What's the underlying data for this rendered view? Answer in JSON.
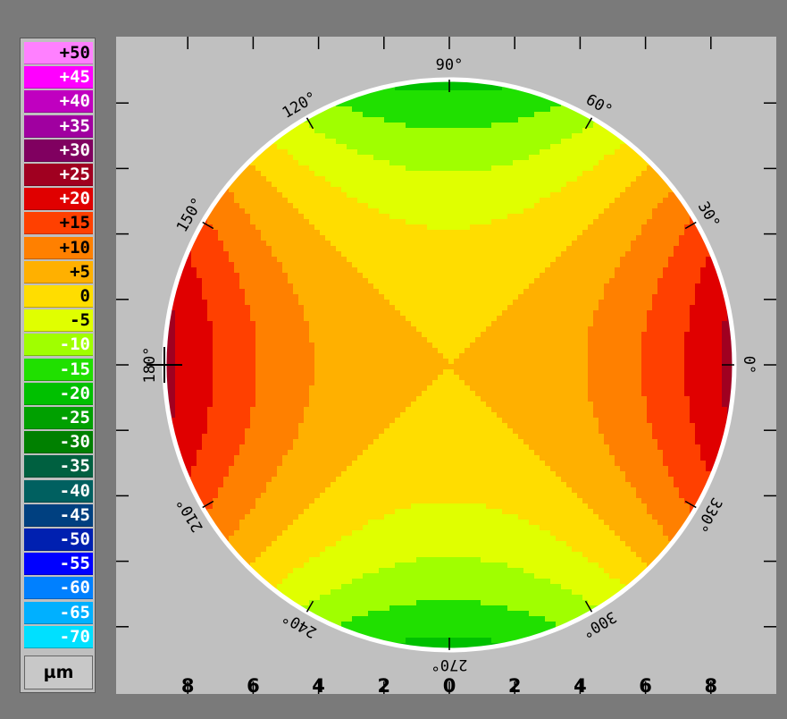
{
  "legend": {
    "items": [
      {
        "label": "+50",
        "color": "#ff80ff"
      },
      {
        "label": "+45",
        "color": "#ff00ff"
      },
      {
        "label": "+40",
        "color": "#c000c0"
      },
      {
        "label": "+35",
        "color": "#a000a0"
      },
      {
        "label": "+30",
        "color": "#800060"
      },
      {
        "label": "+25",
        "color": "#a00020"
      },
      {
        "label": "+20",
        "color": "#e00000"
      },
      {
        "label": "+15",
        "color": "#ff4000"
      },
      {
        "label": "+10",
        "color": "#ff8000"
      },
      {
        "label": "+5",
        "color": "#ffb000"
      },
      {
        "label": "0",
        "color": "#ffdd00"
      },
      {
        "label": "-5",
        "color": "#e0ff00"
      },
      {
        "label": "-10",
        "color": "#a0ff00"
      },
      {
        "label": "-15",
        "color": "#20e000"
      },
      {
        "label": "-20",
        "color": "#00c000"
      },
      {
        "label": "-25",
        "color": "#00a000"
      },
      {
        "label": "-30",
        "color": "#008000"
      },
      {
        "label": "-35",
        "color": "#006040"
      },
      {
        "label": "-40",
        "color": "#006060"
      },
      {
        "label": "-45",
        "color": "#004080"
      },
      {
        "label": "-50",
        "color": "#0020b0"
      },
      {
        "label": "-55",
        "color": "#0000ff"
      },
      {
        "label": "-60",
        "color": "#0080ff"
      },
      {
        "label": "-65",
        "color": "#00b0ff"
      },
      {
        "label": "-70",
        "color": "#00e0ff"
      }
    ],
    "unit": "µm"
  },
  "chart_data": {
    "type": "heatmap",
    "description_type": "circular contour map",
    "x_ticks": [
      "8",
      "6",
      "4",
      "2",
      "0",
      "2",
      "4",
      "6",
      "8"
    ],
    "xlim": [
      -9,
      9
    ],
    "ylim": [
      -9,
      9
    ],
    "angle_labels": [
      {
        "angle": 0,
        "label": "0°"
      },
      {
        "angle": 30,
        "label": "30°"
      },
      {
        "angle": 60,
        "label": "60°"
      },
      {
        "angle": 90,
        "label": "90°"
      },
      {
        "angle": 120,
        "label": "120°"
      },
      {
        "angle": 150,
        "label": "150°"
      },
      {
        "angle": 180,
        "label": "180°"
      },
      {
        "angle": 210,
        "label": "210°"
      },
      {
        "angle": 240,
        "label": "240°"
      },
      {
        "angle": 270,
        "label": "270°"
      },
      {
        "angle": 300,
        "label": "300°"
      },
      {
        "angle": 330,
        "label": "330°"
      }
    ],
    "contour_levels": [
      -20,
      -15,
      -10,
      -5,
      0,
      5,
      10,
      15,
      20
    ],
    "max_value": 20,
    "min_value": -20
  }
}
